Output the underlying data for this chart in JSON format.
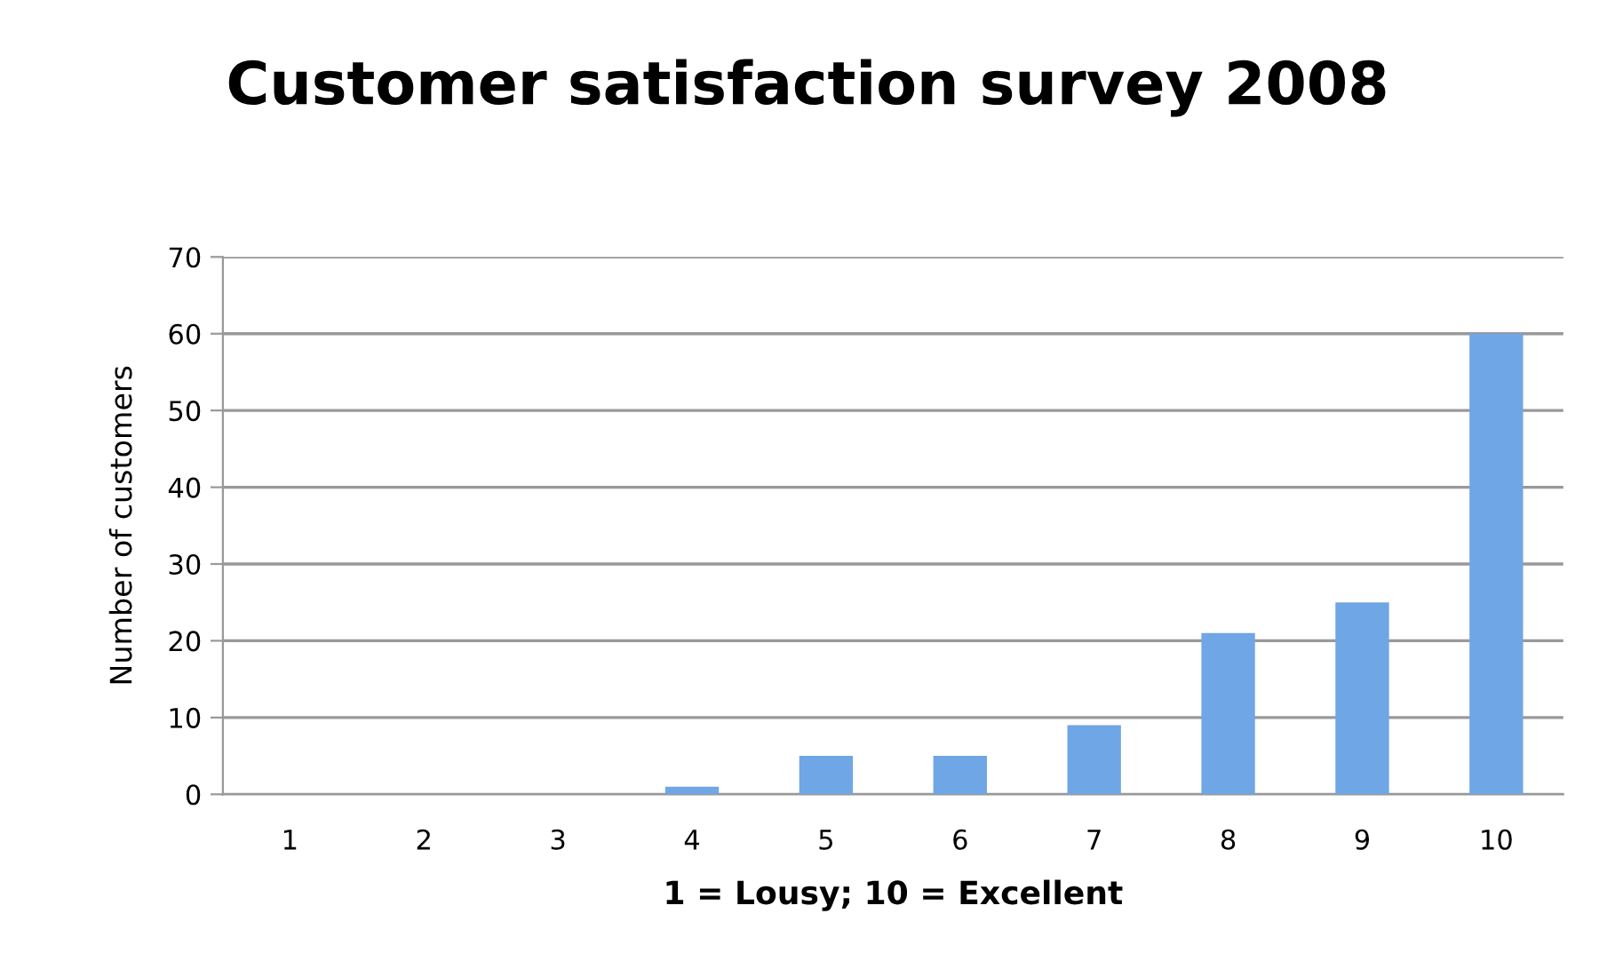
{
  "chart_data": {
    "type": "bar",
    "title": "Customer satisfaction survey 2008",
    "xlabel": "1 = Lousy; 10 = Excellent",
    "ylabel": "Number of customers",
    "categories": [
      "1",
      "2",
      "3",
      "4",
      "5",
      "6",
      "7",
      "8",
      "9",
      "10"
    ],
    "values": [
      0,
      0,
      0,
      1,
      5,
      5,
      9,
      21,
      25,
      60
    ],
    "color": "#6fa6e6",
    "ylim": [
      0,
      70
    ],
    "yticks": [
      0,
      10,
      20,
      30,
      40,
      50,
      60,
      70
    ],
    "grid": "y"
  }
}
